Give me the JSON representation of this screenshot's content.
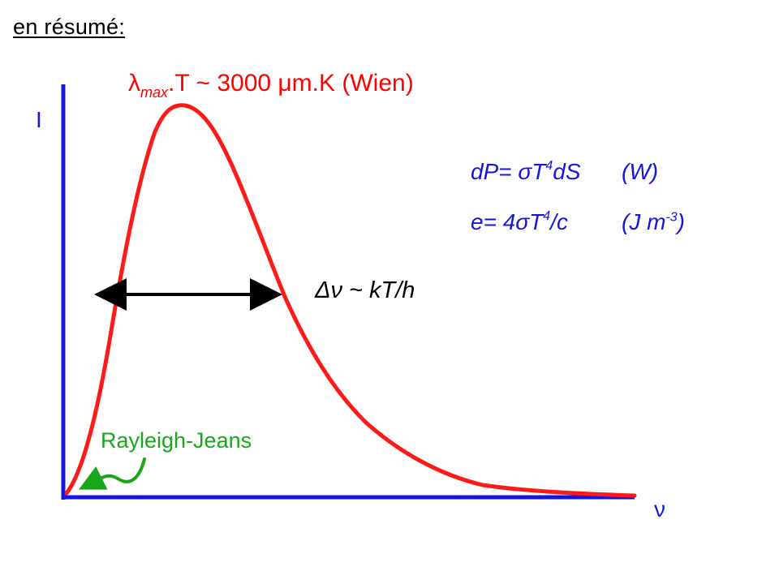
{
  "title": "en résumé:",
  "wien": {
    "lambda": "λ",
    "sub": "max",
    "rest": ".T ~ 3000 μm.K (Wien)"
  },
  "axes": {
    "y_label": "I",
    "x_label": "ν"
  },
  "equations": {
    "eq1": {
      "lhs": "dP= σT",
      "exp": "4",
      "rhs": "dS",
      "unit": "(W)"
    },
    "eq2": {
      "lhs": "e= 4σT",
      "exp": "4",
      "rhs": "/c",
      "unit_pre": "(J m",
      "unit_exp": "-3",
      "unit_post": ")"
    }
  },
  "width_label": "Δν ~ kT/h",
  "rayleigh_label": "Rayleigh-Jeans",
  "colors": {
    "axis": "#1515e0",
    "curve": "#ff1a1a",
    "arrow": "#000000",
    "rayleigh": "#1aa61a"
  }
}
